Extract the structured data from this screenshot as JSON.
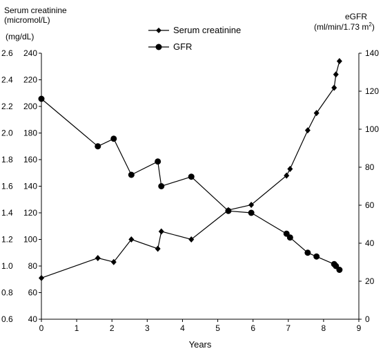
{
  "chart_data": {
    "type": "line",
    "y_left_title_line1": "Serum creatinine",
    "y_left_title_line2": "(micromol/L)",
    "y_left_unit_alt": "(mg/dL)",
    "y_right_title_line1": "eGFR",
    "y_right_title_line2_main": "(ml/min/1.73 m",
    "y_right_title_line2_sup": "2",
    "y_right_title_line2_close": ")",
    "xlabel": "Years",
    "x_ticks": [
      0,
      1,
      2,
      3,
      4,
      5,
      6,
      7,
      8,
      9
    ],
    "xlim": [
      0,
      9
    ],
    "y_left_lim": [
      40,
      240
    ],
    "y_left_ticks": [
      40,
      60,
      80,
      100,
      120,
      140,
      160,
      180,
      200,
      220,
      240
    ],
    "y_left_mgdl_ticks": [
      "0.6",
      "0.8",
      "1.0",
      "1.2",
      "1.4",
      "1.6",
      "1.8",
      "2.0",
      "2.2",
      "2.4",
      "2.6"
    ],
    "y_right_lim": [
      0,
      140
    ],
    "y_right_ticks": [
      0,
      20,
      40,
      60,
      80,
      100,
      120,
      140
    ],
    "legend_placement": "top-center",
    "grid": false,
    "series": [
      {
        "name": "Serum creatinine",
        "axis": "left",
        "marker": "diamond",
        "x": [
          0,
          1.6,
          2.05,
          2.55,
          3.3,
          3.4,
          4.25,
          5.3,
          5.95,
          6.95,
          7.05,
          7.55,
          7.8,
          8.3,
          8.35,
          8.45
        ],
        "y": [
          71,
          86,
          83,
          100,
          93,
          106,
          100,
          122,
          126,
          148,
          153,
          182,
          195,
          214,
          224,
          234
        ]
      },
      {
        "name": "GFR",
        "axis": "right",
        "marker": "circle",
        "x": [
          0,
          1.6,
          2.05,
          2.55,
          3.3,
          3.4,
          4.25,
          5.3,
          5.95,
          6.95,
          7.05,
          7.55,
          7.8,
          8.3,
          8.35,
          8.45
        ],
        "y": [
          116,
          91,
          95,
          76,
          83,
          70,
          75,
          57,
          56,
          45,
          43,
          35,
          33,
          29,
          28,
          26
        ]
      }
    ]
  }
}
